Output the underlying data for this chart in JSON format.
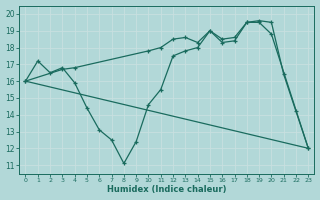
{
  "bg_color": "#b2d8d8",
  "grid_color": "#d0e8e8",
  "line_color": "#1a6b5e",
  "xlabel": "Humidex (Indice chaleur)",
  "xlim": [
    -0.5,
    23.5
  ],
  "ylim": [
    10.5,
    20.5
  ],
  "yticks": [
    11,
    12,
    13,
    14,
    15,
    16,
    17,
    18,
    19,
    20
  ],
  "line1_x": [
    0,
    1,
    2,
    3,
    4,
    5,
    6,
    7,
    8,
    9,
    10,
    11,
    12,
    13,
    14,
    15,
    16,
    17,
    18,
    19,
    20,
    21,
    22,
    23
  ],
  "line1_y": [
    16.0,
    17.2,
    16.5,
    16.8,
    15.9,
    14.4,
    13.1,
    12.5,
    11.1,
    12.4,
    14.6,
    15.5,
    17.5,
    17.8,
    18.0,
    19.0,
    18.3,
    18.4,
    19.5,
    19.6,
    19.5,
    16.4,
    14.2,
    12.0
  ],
  "line2_x": [
    0,
    3,
    4,
    10,
    11,
    12,
    13,
    14,
    15,
    16,
    17,
    18,
    19,
    20,
    23
  ],
  "line2_y": [
    16.0,
    16.7,
    16.8,
    17.8,
    18.0,
    18.5,
    18.6,
    18.3,
    19.0,
    18.5,
    18.6,
    19.5,
    19.5,
    18.8,
    12.0
  ],
  "line3_x": [
    0,
    23
  ],
  "line3_y": [
    16.0,
    12.0
  ]
}
